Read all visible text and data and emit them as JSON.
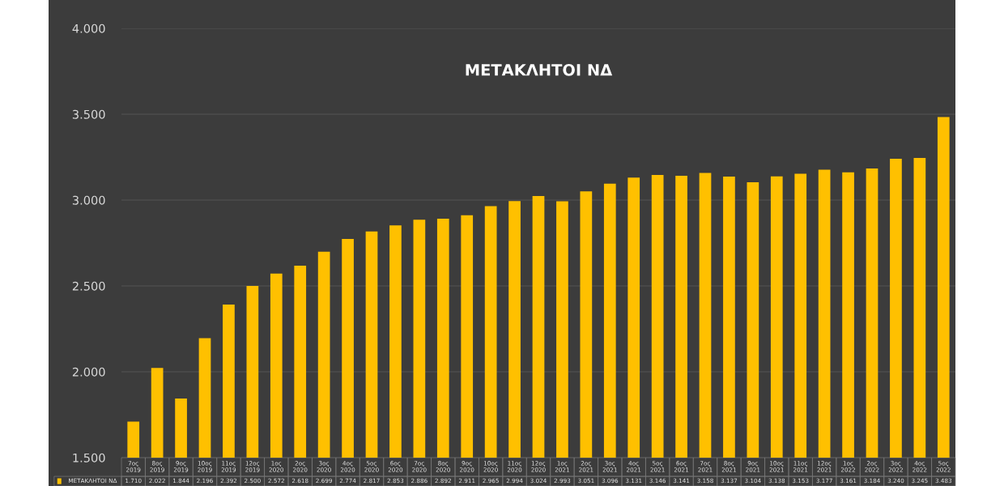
{
  "chart_data": {
    "type": "bar",
    "title": "ΜΕΤΑΚΛΗΤΟΙ ΝΔ",
    "categories": [
      "7ος 2019",
      "8ος 2019",
      "9ος 2019",
      "10ος 2019",
      "11ος 2019",
      "12ος 2019",
      "1ος 2020",
      "2ος 2020",
      "3ος 2020",
      "4ος 2020",
      "5ος 2020",
      "6ος 2020",
      "7ος 2020",
      "8ος 2020",
      "9ος 2020",
      "10ος 2020",
      "11ος 2020",
      "12ος 2020",
      "1ος 2021",
      "2ος 2021",
      "3ος 2021",
      "4ος 2021",
      "5ος 2021",
      "6ος 2021",
      "7ος 2021",
      "8ος 2021",
      "9ος 2021",
      "10ος 2021",
      "11ος 2021",
      "12ος 2021",
      "1ος 2022",
      "2ος 2022",
      "3ος 2022",
      "4ος 2022",
      "5ος 2022"
    ],
    "series": [
      {
        "name": "ΜΕΤΑΚΛΗΤΟΙ ΝΔ",
        "color": "#ffc000",
        "values": [
          1710,
          2022,
          1844,
          2196,
          2392,
          2500,
          2572,
          2618,
          2699,
          2774,
          2817,
          2853,
          2886,
          2892,
          2911,
          2965,
          2994,
          3024,
          2993,
          3051,
          3096,
          3131,
          3146,
          3141,
          3158,
          3137,
          3104,
          3138,
          3153,
          3177,
          3161,
          3184,
          3240,
          3245,
          3483
        ],
        "value_labels": [
          "1.710",
          "2.022",
          "1.844",
          "2.196",
          "2.392",
          "2.500",
          "2.572",
          "2.618",
          "2.699",
          "2.774",
          "2.817",
          "2.853",
          "2.886",
          "2.892",
          "2.911",
          "2.965",
          "2.994",
          "3.024",
          "2.993",
          "3.051",
          "3.096",
          "3.131",
          "3.146",
          "3.141",
          "3.158",
          "3.137",
          "3.104",
          "3.138",
          "3.153",
          "3.177",
          "3.161",
          "3.184",
          "3.240",
          "3.245",
          "3.483"
        ]
      }
    ],
    "ylim": [
      1500,
      4000
    ],
    "yticks": [
      {
        "value": 1500,
        "label": "1.500"
      },
      {
        "value": 2000,
        "label": "2.000"
      },
      {
        "value": 2500,
        "label": "2.500"
      },
      {
        "value": 3000,
        "label": "3.000"
      },
      {
        "value": 3500,
        "label": "3.500"
      },
      {
        "value": 4000,
        "label": "4.000"
      }
    ],
    "grid": "y",
    "legend": "bottom"
  }
}
